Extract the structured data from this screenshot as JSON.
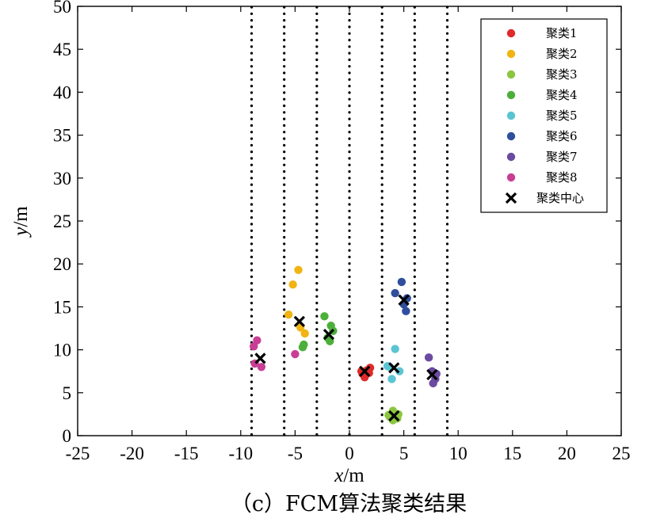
{
  "chart_data": {
    "type": "scatter",
    "caption": "（c）FCM算法聚类结果",
    "xlabel": "x/m",
    "ylabel": "y/m",
    "xlim": [
      -25,
      25
    ],
    "ylim": [
      0,
      50
    ],
    "xticks": [
      -25,
      -20,
      -15,
      -10,
      -5,
      0,
      5,
      10,
      15,
      20,
      25
    ],
    "yticks": [
      0,
      5,
      10,
      15,
      20,
      25,
      30,
      35,
      40,
      45,
      50
    ],
    "grid": false,
    "legend_position": "top-right",
    "vertical_dotted_lines_x": [
      -9,
      -6,
      -3,
      0,
      3,
      6,
      9
    ],
    "series": [
      {
        "name": "聚类1",
        "color": "#e02a2a",
        "points": [
          [
            1.2,
            7.2
          ],
          [
            1.4,
            6.8
          ],
          [
            1.6,
            7.6
          ],
          [
            1.8,
            7.3
          ],
          [
            1.9,
            7.9
          ],
          [
            1.1,
            7.5
          ]
        ]
      },
      {
        "name": "聚类2",
        "color": "#f0b413",
        "points": [
          [
            -4.7,
            19.3
          ],
          [
            -5.2,
            17.6
          ],
          [
            -5.6,
            14.1
          ],
          [
            -4.1,
            11.9
          ],
          [
            -4.5,
            12.6
          ]
        ]
      },
      {
        "name": "聚类3",
        "color": "#8cc63e",
        "points": [
          [
            4.0,
            2.9
          ],
          [
            3.7,
            2.2
          ],
          [
            4.2,
            2.6
          ],
          [
            4.4,
            2.0
          ],
          [
            4.0,
            1.8
          ],
          [
            3.6,
            2.4
          ],
          [
            4.5,
            2.5
          ]
        ]
      },
      {
        "name": "聚类4",
        "color": "#4caf3a",
        "points": [
          [
            -2.3,
            13.9
          ],
          [
            -1.7,
            12.8
          ],
          [
            -1.5,
            12.2
          ],
          [
            -2.0,
            11.4
          ],
          [
            -1.8,
            11.0
          ],
          [
            -4.2,
            10.6
          ],
          [
            -4.3,
            10.3
          ]
        ]
      },
      {
        "name": "聚类5",
        "color": "#5bc4d3",
        "points": [
          [
            4.2,
            10.1
          ],
          [
            3.5,
            8.1
          ],
          [
            3.9,
            6.6
          ],
          [
            4.6,
            7.5
          ],
          [
            3.7,
            8.0
          ]
        ]
      },
      {
        "name": "聚类6",
        "color": "#2f4f9e",
        "points": [
          [
            4.8,
            17.9
          ],
          [
            4.2,
            16.6
          ],
          [
            5.0,
            15.3
          ],
          [
            5.2,
            14.5
          ],
          [
            5.3,
            16.0
          ]
        ]
      },
      {
        "name": "聚类7",
        "color": "#6a4ba0",
        "points": [
          [
            7.3,
            9.1
          ],
          [
            7.7,
            6.1
          ],
          [
            7.9,
            6.6
          ],
          [
            8.0,
            7.2
          ],
          [
            7.6,
            7.5
          ]
        ]
      },
      {
        "name": "聚类8",
        "color": "#c93e95",
        "points": [
          [
            -8.5,
            11.1
          ],
          [
            -8.8,
            10.4
          ],
          [
            -8.7,
            8.4
          ],
          [
            -8.1,
            8.0
          ],
          [
            -5.0,
            9.5
          ]
        ]
      }
    ],
    "centers": {
      "name": "聚类中心",
      "color": "#000000",
      "points": [
        [
          1.4,
          7.5
        ],
        [
          -4.6,
          13.3
        ],
        [
          4.1,
          2.3
        ],
        [
          -1.9,
          11.8
        ],
        [
          4.1,
          7.9
        ],
        [
          5.0,
          15.8
        ],
        [
          7.6,
          7.1
        ],
        [
          -8.2,
          9.0
        ]
      ]
    }
  }
}
